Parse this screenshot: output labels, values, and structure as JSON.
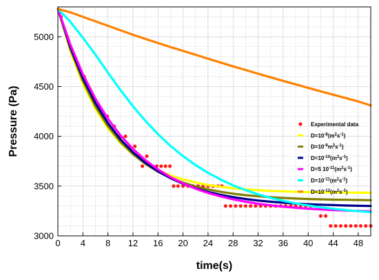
{
  "chart_data": {
    "type": "scatter",
    "title": "",
    "xlabel": "time(s)",
    "ylabel": "Pressure (Pa)",
    "xlim": [
      0,
      50
    ],
    "ylim": [
      3000,
      5300
    ],
    "xticks": [
      0,
      4,
      8,
      12,
      16,
      20,
      24,
      28,
      32,
      36,
      40,
      44,
      48
    ],
    "yticks": [
      3000,
      3500,
      4000,
      4500,
      5000
    ],
    "grid": true,
    "legend_placement": "right",
    "series": [
      {
        "name": "Experimental data",
        "kind": "scatter",
        "color": "#ff1a1a",
        "x": [
          0.5,
          1.5,
          2.7,
          4.2,
          5.5,
          6.3,
          7.9,
          9.0,
          10.0,
          10.8,
          11.5,
          12.3,
          13.0,
          13.5,
          14.2,
          15.0,
          15.8,
          16.5,
          17.2,
          17.9,
          18.5,
          19.2,
          20.0,
          20.8,
          21.6,
          22.4,
          23.2,
          24.0,
          24.8,
          25.6,
          26.2,
          26.8,
          27.6,
          28.4,
          29.2,
          30.0,
          30.8,
          31.6,
          32.4,
          33.2,
          34.0,
          34.8,
          35.6,
          36.4,
          37.2,
          38.0,
          38.8,
          39.6,
          40.4,
          41.2,
          42.0,
          42.8,
          43.6,
          44.4,
          45.2,
          46.0,
          46.8,
          47.6,
          48.4,
          49.2,
          50.0
        ],
        "y": [
          5200,
          5000,
          4800,
          4600,
          4400,
          4300,
          4200,
          4100,
          4000,
          4000,
          3900,
          3900,
          3800,
          3700,
          3800,
          3700,
          3700,
          3700,
          3700,
          3700,
          3500,
          3500,
          3500,
          3500,
          3500,
          3500,
          3500,
          3500,
          3500,
          3500,
          3500,
          3300,
          3300,
          3300,
          3300,
          3300,
          3300,
          3300,
          3300,
          3300,
          3300,
          3300,
          3300,
          3300,
          3300,
          3300,
          3300,
          3300,
          3300,
          3300,
          3200,
          3200,
          3100,
          3100,
          3100,
          3100,
          3100,
          3100,
          3100,
          3100,
          3100
        ]
      },
      {
        "name": "D=10⁻⁸(m²s⁻¹)",
        "legend_base": "D=10",
        "legend_exp": "-8",
        "legend_unit_a": "(m",
        "legend_unit_b": "s",
        "legend_unit_c": ")",
        "kind": "line",
        "color": "#ffff00",
        "x": [
          0,
          2,
          4,
          6,
          8,
          10,
          12,
          14,
          16,
          18,
          20,
          22,
          24,
          26,
          28,
          30,
          32,
          34,
          36,
          38,
          40,
          42,
          44,
          46,
          48,
          50
        ],
        "y": [
          5280,
          4855,
          4527,
          4275,
          4081,
          3932,
          3817,
          3728,
          3660,
          3607,
          3567,
          3536,
          3511,
          3493,
          3478,
          3467,
          3459,
          3452,
          3447,
          3443,
          3440,
          3438,
          3436,
          3435,
          3434,
          3433
        ]
      },
      {
        "name": "D=10⁻⁹m²s⁻¹)",
        "legend_base": "D=10",
        "legend_exp": "-9",
        "legend_unit_a": "m",
        "legend_unit_b": "s",
        "legend_unit_c": ")",
        "kind": "line",
        "color": "#808000",
        "x": [
          0,
          2,
          4,
          6,
          8,
          10,
          12,
          14,
          16,
          18,
          20,
          22,
          24,
          26,
          28,
          30,
          32,
          34,
          36,
          38,
          40,
          42,
          44,
          46,
          48,
          50
        ],
        "y": [
          5280,
          4875,
          4555,
          4302,
          4102,
          3945,
          3820,
          3722,
          3645,
          3584,
          3535,
          3497,
          3467,
          3443,
          3424,
          3409,
          3398,
          3388,
          3381,
          3375,
          3370,
          3367,
          3364,
          3362,
          3360,
          3358
        ]
      },
      {
        "name": "D=10⁻¹⁰(m²s⁻¹)",
        "legend_base": "D=10",
        "legend_exp": "-10",
        "legend_unit_a": "(m",
        "legend_unit_b": "s",
        "legend_unit_c": ")",
        "kind": "line",
        "color": "#00008b",
        "x": [
          0,
          2,
          4,
          6,
          8,
          10,
          12,
          14,
          16,
          18,
          20,
          22,
          24,
          26,
          28,
          30,
          32,
          34,
          36,
          38,
          40,
          42,
          44,
          46,
          48,
          50
        ],
        "y": [
          5280,
          4895,
          4585,
          4335,
          4133,
          3970,
          3839,
          3733,
          3648,
          3579,
          3523,
          3478,
          3442,
          3413,
          3389,
          3370,
          3355,
          3343,
          3333,
          3325,
          3318,
          3313,
          3309,
          3305,
          3302,
          3300
        ]
      },
      {
        "name": "D=5 10⁻¹¹(m²s⁻¹)",
        "legend_base": "D=5 10",
        "legend_exp": "-11",
        "legend_unit_a": "(m",
        "legend_unit_b": "s",
        "legend_unit_c": ")",
        "kind": "line",
        "color": "#ff00ff",
        "x": [
          0,
          2,
          4,
          6,
          8,
          10,
          12,
          14,
          16,
          18,
          20,
          22,
          24,
          26,
          28,
          30,
          32,
          34,
          36,
          38,
          40,
          42,
          44,
          46,
          48,
          50
        ],
        "y": [
          5280,
          4920,
          4623,
          4378,
          4176,
          4010,
          3873,
          3760,
          3667,
          3590,
          3527,
          3474,
          3431,
          3396,
          3367,
          3343,
          3323,
          3307,
          3293,
          3282,
          3273,
          3265,
          3259,
          3254,
          3250,
          3246
        ]
      },
      {
        "name": "D=10⁻¹¹(m²s⁻¹)",
        "legend_base": "D=10",
        "legend_exp": "-11",
        "legend_unit_a": "(m",
        "legend_unit_b": "s",
        "legend_unit_c": ")",
        "kind": "line",
        "color": "#00ffff",
        "x": [
          0,
          2,
          4,
          6,
          8,
          10,
          12,
          14,
          16,
          18,
          20,
          22,
          24,
          26,
          28,
          30,
          32,
          34,
          36,
          38,
          40,
          42,
          44,
          46,
          48,
          50
        ],
        "y": [
          5280,
          5150,
          4990,
          4820,
          4640,
          4465,
          4302,
          4154,
          4022,
          3904,
          3801,
          3711,
          3633,
          3566,
          3508,
          3459,
          3417,
          3382,
          3352,
          3327,
          3305,
          3287,
          3272,
          3259,
          3247,
          3238
        ]
      },
      {
        "name": "D=10⁻¹²(m²s⁻¹)",
        "legend_base": "D=10",
        "legend_exp": "-12",
        "legend_unit_a": "(m",
        "legend_unit_b": "s",
        "legend_unit_c": ")",
        "kind": "line",
        "color": "#ff8000",
        "x": [
          0,
          2,
          4,
          6,
          8,
          10,
          12,
          14,
          16,
          18,
          20,
          22,
          24,
          26,
          28,
          30,
          32,
          34,
          36,
          38,
          40,
          42,
          44,
          46,
          48,
          50
        ],
        "y": [
          5280,
          5245,
          5200,
          5155,
          5110,
          5065,
          5020,
          4978,
          4937,
          4897,
          4858,
          4819,
          4780,
          4741,
          4703,
          4666,
          4629,
          4593,
          4557,
          4522,
          4487,
          4452,
          4418,
          4384,
          4350,
          4310
        ]
      }
    ]
  }
}
